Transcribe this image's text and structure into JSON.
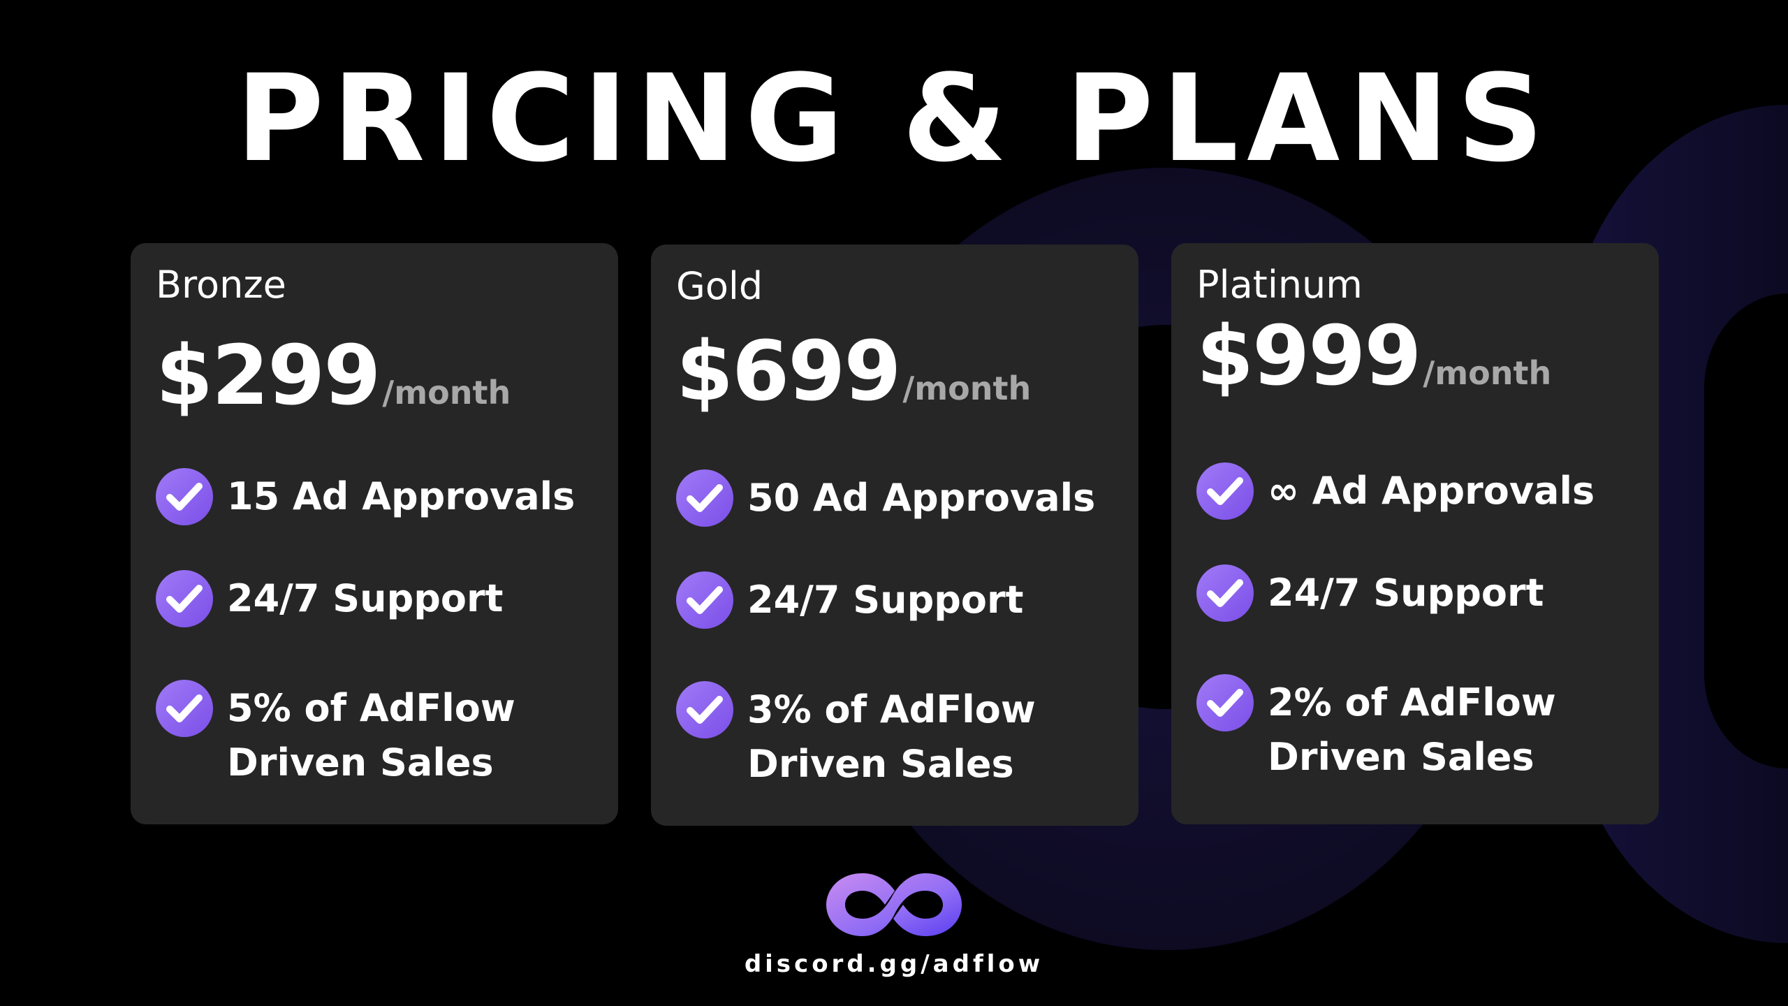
{
  "title": "PRICING & PLANS",
  "accent_color": "#8b5cf6",
  "plans": [
    {
      "name": "Bronze",
      "price": "$299",
      "period": "/month",
      "features": [
        "15 Ad Approvals",
        "24/7 Support",
        "5% of AdFlow\nDriven Sales"
      ]
    },
    {
      "name": "Gold",
      "price": "$699",
      "period": "/month",
      "features": [
        "50 Ad Approvals",
        "24/7 Support",
        "3% of AdFlow\nDriven Sales"
      ]
    },
    {
      "name": "Platinum",
      "price": "$999",
      "period": "/month",
      "features": [
        "∞ Ad Approvals",
        "24/7 Support",
        "2% of AdFlow\nDriven Sales"
      ]
    }
  ],
  "footer": {
    "logo_icon": "infinity-logo-icon",
    "url": "discord.gg/adflow"
  }
}
